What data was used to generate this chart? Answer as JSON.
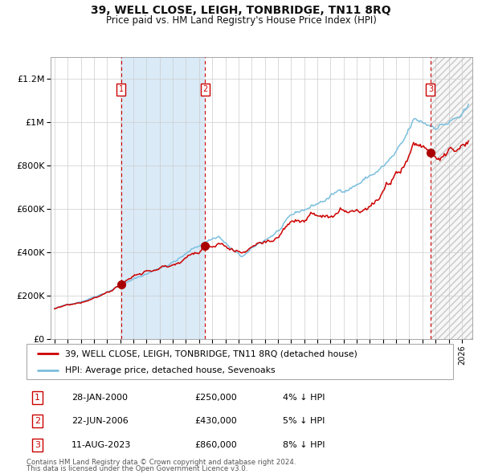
{
  "title": "39, WELL CLOSE, LEIGH, TONBRIDGE, TN11 8RQ",
  "subtitle": "Price paid vs. HM Land Registry's House Price Index (HPI)",
  "legend_line1": "39, WELL CLOSE, LEIGH, TONBRIDGE, TN11 8RQ (detached house)",
  "legend_line2": "HPI: Average price, detached house, Sevenoaks",
  "transactions": [
    {
      "id": 1,
      "date": "28-JAN-2000",
      "price": 250000,
      "pct": "4%",
      "direction": "↓"
    },
    {
      "id": 2,
      "date": "22-JUN-2006",
      "price": 430000,
      "pct": "5%",
      "direction": "↓"
    },
    {
      "id": 3,
      "date": "11-AUG-2023",
      "price": 860000,
      "pct": "8%",
      "direction": "↓"
    }
  ],
  "transaction_dates_decimal": [
    2000.07,
    2006.47,
    2023.62
  ],
  "transaction_prices": [
    250000,
    430000,
    860000
  ],
  "footnote1": "Contains HM Land Registry data © Crown copyright and database right 2024.",
  "footnote2": "This data is licensed under the Open Government Licence v3.0.",
  "hpi_line_color": "#7bbfde",
  "price_line_color": "#cc0000",
  "dot_color": "#aa0000",
  "vline_color": "#cc0000",
  "shade_color": "#daeaf7",
  "bg_color": "#ffffff",
  "grid_color": "#cccccc",
  "ylim": [
    0,
    1300000
  ],
  "xlim_start": 1994.7,
  "xlim_end": 2026.8
}
